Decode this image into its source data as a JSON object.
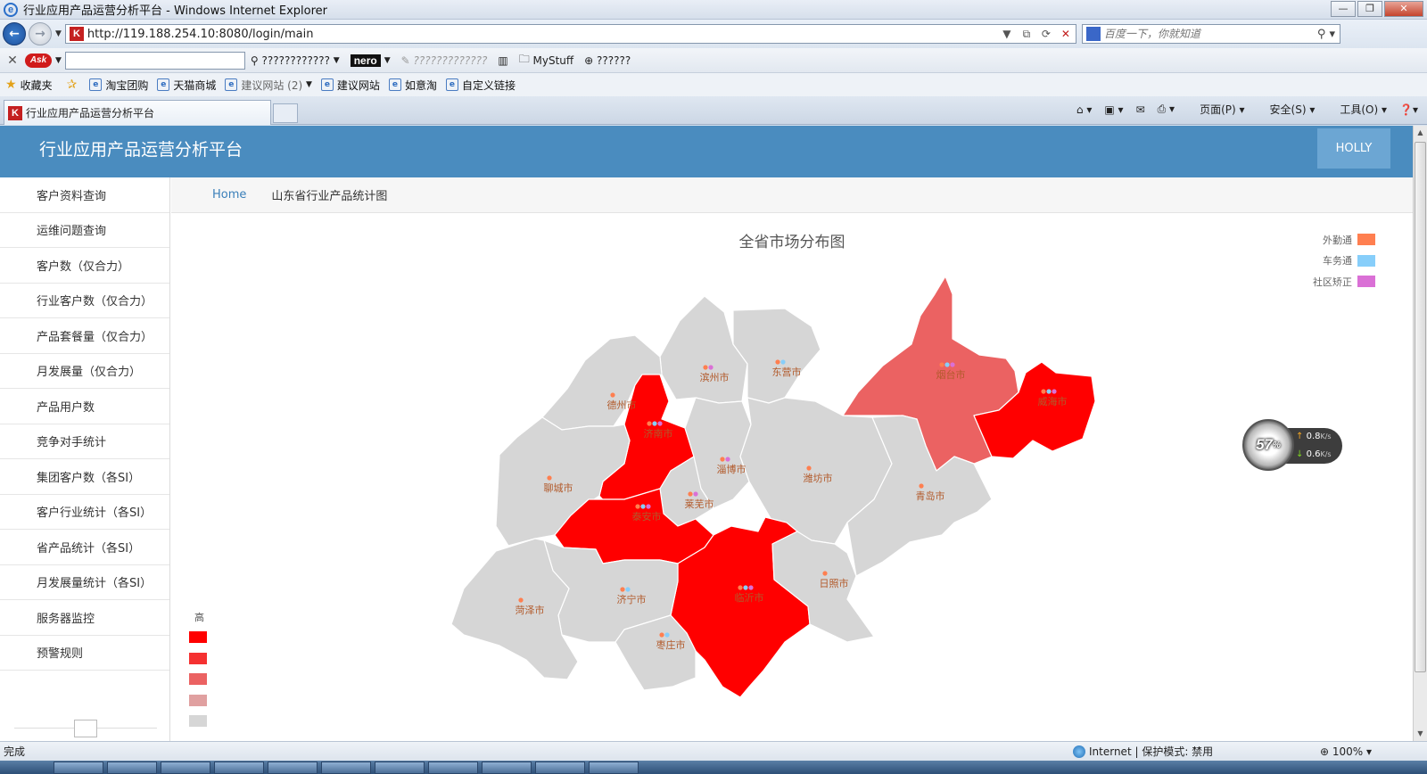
{
  "window": {
    "title": "行业应用产品运营分析平台 - Windows Internet Explorer",
    "url": "http://119.188.254.10:8080/login/main",
    "search_placeholder": "百度一下，你就知道"
  },
  "toolbar": {
    "ask_label": "Ask",
    "search_label": "????????????",
    "nero_label": "nero",
    "dim_label": "?????????????",
    "mystuff_label": "MyStuff",
    "q_label": "??????"
  },
  "favorites": {
    "root": "收藏夹",
    "items": [
      "淘宝团购",
      "天猫商城",
      "建议网站 (2)",
      "建议网站",
      "如意淘",
      "自定义链接"
    ]
  },
  "tabs": {
    "active_label": "行业应用产品运营分析平台"
  },
  "commandbar": {
    "page": "页面(P)",
    "safety": "安全(S)",
    "tools": "工具(O)"
  },
  "app": {
    "title": "行业应用产品运营分析平台",
    "user": "HOLLY"
  },
  "sidebar": {
    "items": [
      "客户资料查询",
      "运维问题查询",
      "客户数（仅合力）",
      "行业客户数（仅合力）",
      "产品套餐量（仅合力）",
      "月发展量（仅合力）",
      "产品用户数",
      "竞争对手统计",
      "集团客户数（各SI）",
      "客户行业统计（各SI）",
      "省产品统计（各SI）",
      "月发展量统计（各SI）",
      "服务器监控",
      "预警规则"
    ]
  },
  "breadcrumb": {
    "home": "Home",
    "current": "山东省行业产品统计图"
  },
  "chart_data": {
    "type": "map",
    "title": "全省市场分布图",
    "series_legend": [
      {
        "name": "外勤通",
        "color": "#ff7f50"
      },
      {
        "name": "车务通",
        "color": "#87cefa"
      },
      {
        "name": "社区矫正",
        "color": "#da70d6"
      }
    ],
    "range_legend": {
      "label_high": "高",
      "colors": [
        "#ff0000",
        "#f53131",
        "#eb6262",
        "#e0a0a0",
        "#d6d6d6"
      ]
    },
    "regions": [
      {
        "name": "滨州市",
        "level": 4
      },
      {
        "name": "东营市",
        "level": 4
      },
      {
        "name": "烟台市",
        "level": 2
      },
      {
        "name": "威海市",
        "level": 0
      },
      {
        "name": "德州市",
        "level": 4
      },
      {
        "name": "济南市",
        "level": 0
      },
      {
        "name": "淄博市",
        "level": 4
      },
      {
        "name": "潍坊市",
        "level": 4
      },
      {
        "name": "青岛市",
        "level": 4
      },
      {
        "name": "聊城市",
        "level": 4
      },
      {
        "name": "莱芜市",
        "level": 4
      },
      {
        "name": "泰安市",
        "level": 0
      },
      {
        "name": "临沂市",
        "level": 0
      },
      {
        "name": "日照市",
        "level": 4
      },
      {
        "name": "济宁市",
        "level": 4
      },
      {
        "name": "菏泽市",
        "level": 4
      },
      {
        "name": "枣庄市",
        "level": 4
      }
    ]
  },
  "speed_widget": {
    "percent": "57",
    "upload": "0.8",
    "download": "0.6",
    "unit": "K/s"
  },
  "statusbar": {
    "left": "完成",
    "zone": "Internet | 保护模式: 禁用",
    "zoom": "100%"
  }
}
